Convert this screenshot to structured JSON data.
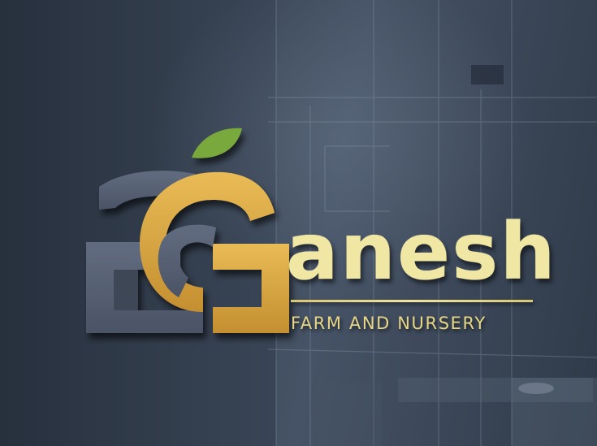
{
  "brand": {
    "name": "anesh",
    "tagline": "FARM AND NURSERY",
    "monogram_letter": "G"
  },
  "colors": {
    "wall": "#2e3846",
    "monogram_dark": "#565f72",
    "monogram_gold": "#d8a640",
    "leaf": "#79a83c",
    "wordmark": "#efe7a3"
  }
}
